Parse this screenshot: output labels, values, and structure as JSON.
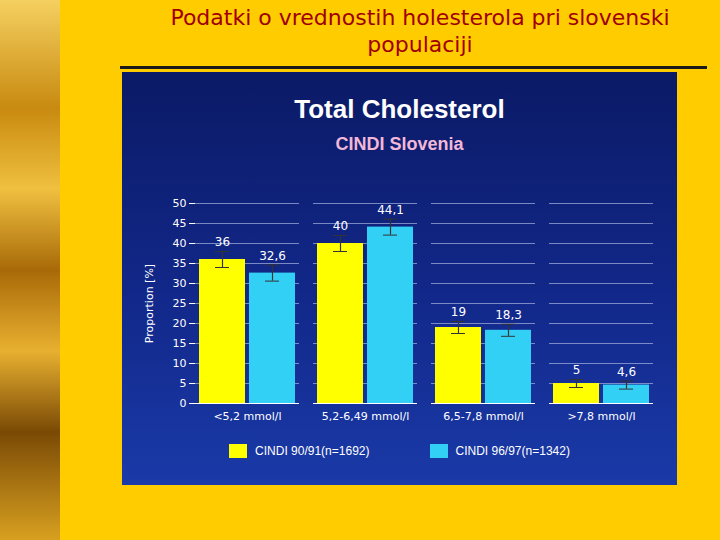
{
  "slide_title": "Podatki o vrednostih holesterola pri slovenski populaciji",
  "chart_data": {
    "type": "bar",
    "title": "Total Cholesterol",
    "subtitle": "CINDI Slovenia",
    "y_label": "Proportion [%]",
    "categories": [
      "<5,2 mmol/l",
      "5,2-6,49 mmol/l",
      "6,5-7,8 mmol/l",
      ">7,8 mmol/l"
    ],
    "series": [
      {
        "name": "CINDI 90/91(n=1692)",
        "color": "#ffff00",
        "values": [
          36,
          40,
          19,
          5
        ],
        "value_labels": [
          "36",
          "40",
          "19",
          "5"
        ],
        "errors": [
          2,
          2,
          1.5,
          1
        ]
      },
      {
        "name": "CINDI 96/97(n=1342)",
        "color": "#33d0f5",
        "values": [
          32.6,
          44.1,
          18.3,
          4.6
        ],
        "value_labels": [
          "32,6",
          "44,1",
          "18,3",
          "4,6"
        ],
        "errors": [
          2,
          2,
          1.5,
          1
        ]
      }
    ],
    "ylim": [
      0,
      50
    ],
    "yticks": [
      0,
      5,
      10,
      15,
      20,
      25,
      30,
      35,
      40,
      45,
      50
    ],
    "grid": true,
    "data_labels": true,
    "legend": "bottom"
  }
}
